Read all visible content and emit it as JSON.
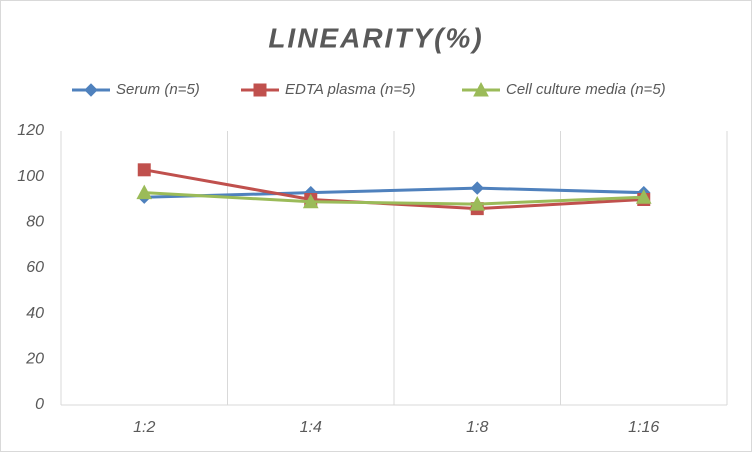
{
  "chart_data": {
    "type": "line",
    "title": "LINEARITY(%)",
    "categories": [
      "1:2",
      "1:4",
      "1:8",
      "1:16"
    ],
    "series": [
      {
        "name": "Serum (n=5)",
        "color": "#4f81bd",
        "marker": "diamond",
        "values": [
          91,
          93,
          95,
          93
        ]
      },
      {
        "name": "EDTA plasma (n=5)",
        "color": "#c0504d",
        "marker": "square",
        "values": [
          103,
          90,
          86,
          90
        ]
      },
      {
        "name": "Cell culture media (n=5)",
        "color": "#9bbb59",
        "marker": "triangle",
        "values": [
          93,
          89,
          88,
          91
        ]
      }
    ],
    "ylim": [
      0,
      120
    ],
    "yticks": [
      0,
      20,
      40,
      60,
      80,
      100,
      120
    ],
    "grid": true,
    "legend": "top"
  }
}
